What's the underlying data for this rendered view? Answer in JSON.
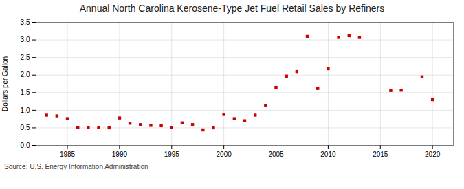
{
  "chart_data": {
    "type": "scatter",
    "title": "Annual North Carolina Kerosene-Type Jet Fuel Retail Sales by Refiners",
    "ylabel": "Dollars per Gallon",
    "annotations": [
      "Source: U.S. Energy Information Administration"
    ],
    "x": [
      1983,
      1984,
      1985,
      1986,
      1987,
      1988,
      1989,
      1990,
      1991,
      1992,
      1993,
      1994,
      1995,
      1996,
      1997,
      1998,
      1999,
      2000,
      2001,
      2002,
      2003,
      2004,
      2005,
      2006,
      2007,
      2008,
      2009,
      2010,
      2011,
      2012,
      2013,
      2016,
      2017,
      2019,
      2020
    ],
    "values": [
      0.86,
      0.84,
      0.76,
      0.51,
      0.51,
      0.51,
      0.5,
      0.78,
      0.63,
      0.59,
      0.57,
      0.56,
      0.51,
      0.64,
      0.59,
      0.44,
      0.5,
      0.88,
      0.76,
      0.7,
      0.86,
      1.13,
      1.65,
      1.97,
      2.1,
      3.1,
      1.62,
      2.18,
      3.07,
      3.12,
      3.07,
      1.56,
      1.57,
      1.95,
      1.3
    ],
    "color": "#cc0000",
    "marker": "square",
    "xlim": [
      1982,
      2022
    ],
    "ylim": [
      0.0,
      3.5
    ],
    "xticks": [
      1985,
      1990,
      1995,
      2000,
      2005,
      2010,
      2015,
      2020
    ],
    "yticks": [
      {
        "value": 0,
        "label": "0.0"
      },
      0.5,
      {
        "value": 1,
        "label": "1.0"
      },
      1.5,
      {
        "value": 2,
        "label": "2.0"
      },
      2.5,
      {
        "value": 3,
        "label": "3.0"
      },
      3.5
    ],
    "grid": true
  }
}
